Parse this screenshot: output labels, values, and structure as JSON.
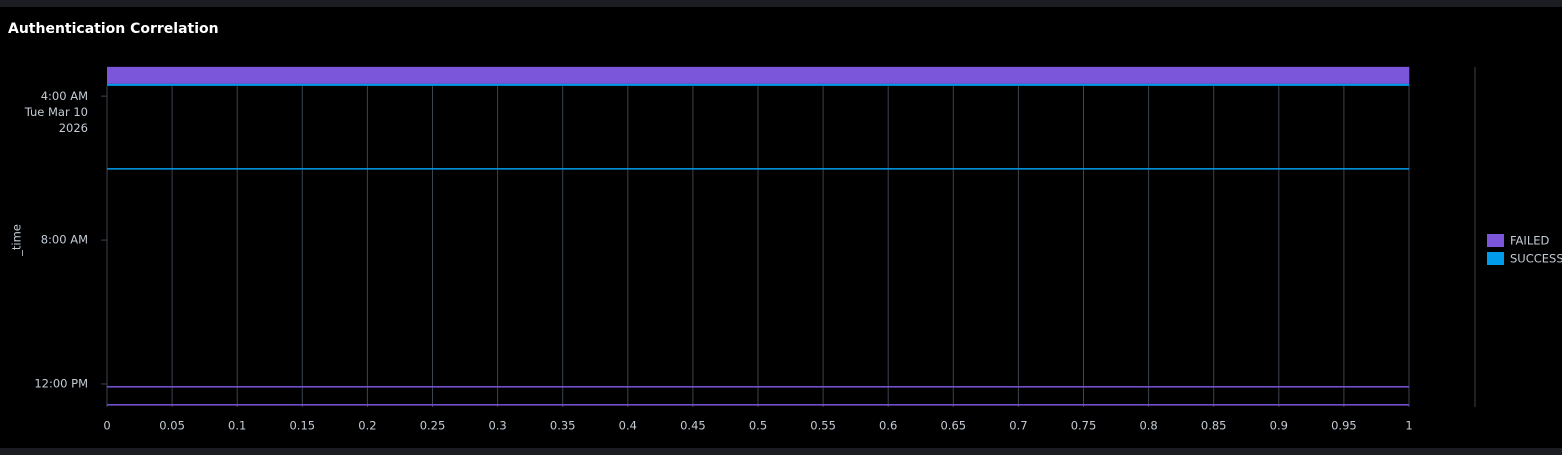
{
  "chart_data": {
    "type": "bar",
    "orientation": "horizontal",
    "title": "Authentication Correlation",
    "y_label": "_time",
    "x": [
      3.45,
      6.0,
      12.1,
      12.6
    ],
    "series": [
      {
        "name": "FAILED",
        "color": "#7b56db",
        "values": [
          1,
          0,
          1,
          1
        ]
      },
      {
        "name": "SUCCESS",
        "color": "#009ceb",
        "values": [
          1,
          1,
          0,
          0
        ]
      }
    ],
    "ylim": [
      3.19,
      12.64
    ],
    "yticks": [
      {
        "value": 4,
        "label": "4:00 AM\nTue Mar 10\n2026"
      },
      {
        "value": 8,
        "label": "8:00 AM"
      },
      {
        "value": 12,
        "label": "12:00 PM"
      }
    ],
    "xlim": [
      0,
      1
    ],
    "xticks": [
      0,
      0.05,
      0.1,
      0.15,
      0.2,
      0.25,
      0.3,
      0.35,
      0.4,
      0.45,
      0.5,
      0.55,
      0.6,
      0.65,
      0.7,
      0.75,
      0.8,
      0.85,
      0.9,
      0.95,
      1
    ],
    "grid": true,
    "legend": "right"
  }
}
